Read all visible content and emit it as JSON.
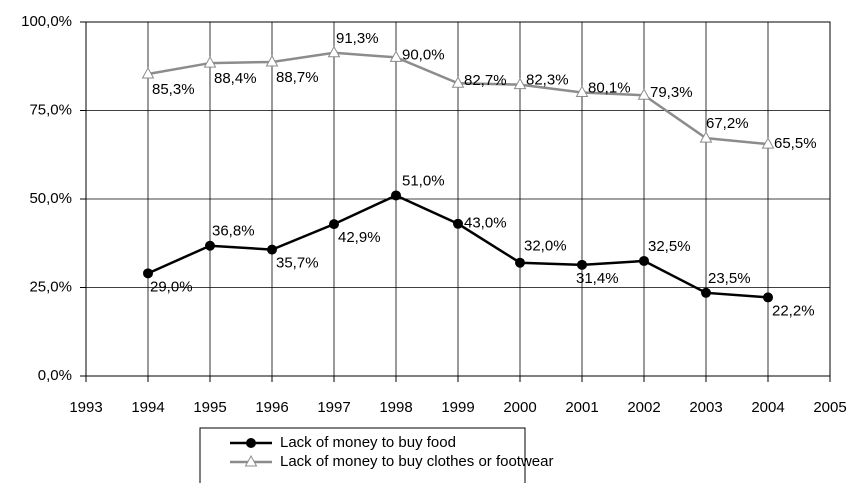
{
  "chart_data": {
    "type": "line",
    "x": [
      1994,
      1995,
      1996,
      1997,
      1998,
      1999,
      2000,
      2001,
      2002,
      2003,
      2004
    ],
    "series": [
      {
        "name": "Lack of money to buy food",
        "color": "#000000",
        "marker": "circle",
        "values": [
          29.0,
          36.8,
          35.7,
          42.9,
          51.0,
          43.0,
          32.0,
          31.4,
          32.5,
          23.5,
          22.2
        ],
        "value_labels": [
          "29,0%",
          "36,8%",
          "35,7%",
          "42,9%",
          "51,0%",
          "43,0%",
          "32,0%",
          "31,4%",
          "32,5%",
          "23,5%",
          "22,2%"
        ]
      },
      {
        "name": "Lack of money to buy clothes or footwear",
        "color": "#8c8c8c",
        "marker": "triangle",
        "values": [
          85.3,
          88.4,
          88.7,
          91.3,
          90.0,
          82.7,
          82.3,
          80.1,
          79.3,
          67.2,
          65.5
        ],
        "value_labels": [
          "85,3%",
          "88,4%",
          "88,7%",
          "91,3%",
          "90,0%",
          "82,7%",
          "82,3%",
          "80,1%",
          "79,3%",
          "67,2%",
          "65,5%"
        ]
      }
    ],
    "xlim": [
      1993,
      2005
    ],
    "xticks": [
      1993,
      1994,
      1995,
      1996,
      1997,
      1998,
      1999,
      2000,
      2001,
      2002,
      2003,
      2004,
      2005
    ],
    "ylim": [
      0,
      100
    ],
    "yticks": [
      {
        "value": 0,
        "label": "0,0%"
      },
      {
        "value": 25,
        "label": "25,0%"
      },
      {
        "value": 50,
        "label": "50,0%"
      },
      {
        "value": 75,
        "label": "75,0%"
      },
      {
        "value": 100,
        "label": "100,0%"
      }
    ],
    "grid": true,
    "legend": "bottom"
  }
}
